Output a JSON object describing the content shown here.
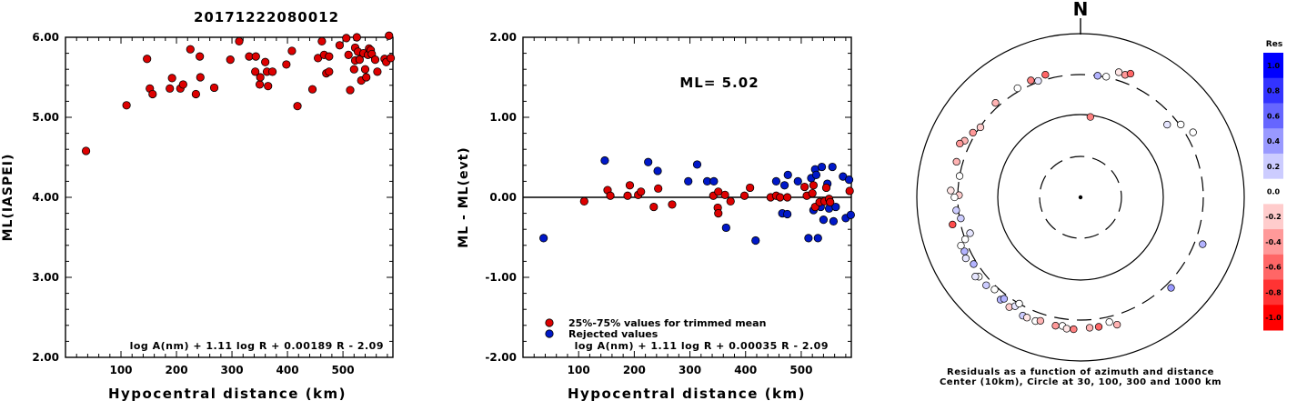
{
  "title": "20171222080012",
  "colors": {
    "accepted": "#dd0000",
    "rejected": "#0018c8",
    "axis": "#000000"
  },
  "chart_data": [
    {
      "type": "scatter",
      "ylabel": "ML(IASPEI)",
      "xlabel": "Hypocentral distance (km)",
      "xlim": [
        0,
        590
      ],
      "ylim": [
        2.0,
        6.0
      ],
      "xticks": [
        100,
        200,
        300,
        400,
        500
      ],
      "yticks": [
        2.0,
        3.0,
        4.0,
        5.0,
        6.0
      ],
      "ytick_labels": [
        "2.00",
        "3.00",
        "4.00",
        "5.00",
        "6.00"
      ],
      "formula": "log A(nm) + 1.11 log R + 0.00189 R - 2.09",
      "points": [
        [
          37,
          4.58
        ],
        [
          110,
          5.15
        ],
        [
          147,
          5.73
        ],
        [
          152,
          5.36
        ],
        [
          157,
          5.29
        ],
        [
          188,
          5.36
        ],
        [
          192,
          5.49
        ],
        [
          207,
          5.36
        ],
        [
          212,
          5.41
        ],
        [
          225,
          5.85
        ],
        [
          235,
          5.29
        ],
        [
          242,
          5.76
        ],
        [
          243,
          5.5
        ],
        [
          268,
          5.37
        ],
        [
          297,
          5.72
        ],
        [
          313,
          5.95
        ],
        [
          331,
          5.76
        ],
        [
          343,
          5.76
        ],
        [
          342,
          5.57
        ],
        [
          350,
          5.41
        ],
        [
          351,
          5.5
        ],
        [
          360,
          5.69
        ],
        [
          363,
          5.57
        ],
        [
          365,
          5.39
        ],
        [
          373,
          5.57
        ],
        [
          398,
          5.66
        ],
        [
          408,
          5.83
        ],
        [
          418,
          5.14
        ],
        [
          445,
          5.35
        ],
        [
          455,
          5.74
        ],
        [
          462,
          5.95
        ],
        [
          466,
          5.78
        ],
        [
          470,
          5.55
        ],
        [
          475,
          5.57
        ],
        [
          475,
          5.76
        ],
        [
          494,
          5.9
        ],
        [
          506,
          5.99
        ],
        [
          510,
          5.78
        ],
        [
          513,
          5.34
        ],
        [
          520,
          5.6
        ],
        [
          522,
          5.71
        ],
        [
          522,
          5.87
        ],
        [
          525,
          6.0
        ],
        [
          527,
          5.82
        ],
        [
          530,
          5.72
        ],
        [
          533,
          5.46
        ],
        [
          537,
          5.8
        ],
        [
          540,
          5.6
        ],
        [
          542,
          5.5
        ],
        [
          545,
          5.78
        ],
        [
          547,
          5.86
        ],
        [
          550,
          5.84
        ],
        [
          552,
          5.79
        ],
        [
          558,
          5.72
        ],
        [
          562,
          5.57
        ],
        [
          575,
          5.73
        ],
        [
          578,
          5.69
        ],
        [
          583,
          6.02
        ],
        [
          586,
          5.74
        ]
      ]
    },
    {
      "type": "scatter",
      "ylabel": "ML - ML(evt)",
      "xlabel": "Hypocentral distance (km)",
      "xlim": [
        0,
        590
      ],
      "ylim": [
        -2.0,
        2.0
      ],
      "xticks": [
        100,
        200,
        300,
        400,
        500
      ],
      "yticks": [
        -2.0,
        -1.0,
        0.0,
        1.0,
        2.0
      ],
      "ytick_labels": [
        "-2.00",
        "-1.00",
        "0.00",
        "1.00",
        "2.00"
      ],
      "annotation": "ML= 5.02",
      "legend": [
        "25%-75% values for trimmed mean",
        "Rejected values"
      ],
      "formula": "log A(nm) + 1.11 log R + 0.00035 R - 2.09",
      "series": [
        {
          "name": "25%-75% values for trimmed mean",
          "points": [
            [
              110,
              -0.05
            ],
            [
              152,
              0.09
            ],
            [
              157,
              0.02
            ],
            [
              188,
              0.02
            ],
            [
              192,
              0.15
            ],
            [
              207,
              0.03
            ],
            [
              212,
              0.07
            ],
            [
              235,
              -0.12
            ],
            [
              243,
              0.11
            ],
            [
              268,
              -0.09
            ],
            [
              342,
              0.02
            ],
            [
              350,
              -0.13
            ],
            [
              351,
              -0.2
            ],
            [
              351,
              0.07
            ],
            [
              363,
              0.03
            ],
            [
              373,
              -0.05
            ],
            [
              398,
              0.02
            ],
            [
              408,
              0.12
            ],
            [
              445,
              0.0
            ],
            [
              455,
              0.02
            ],
            [
              462,
              0.0
            ],
            [
              475,
              0.0
            ],
            [
              506,
              0.13
            ],
            [
              510,
              0.02
            ],
            [
              520,
              0.05
            ],
            [
              522,
              0.15
            ],
            [
              525,
              -0.12
            ],
            [
              533,
              -0.06
            ],
            [
              542,
              -0.05
            ],
            [
              545,
              0.12
            ],
            [
              550,
              -0.02
            ],
            [
              552,
              -0.06
            ],
            [
              587,
              0.08
            ]
          ]
        },
        {
          "name": "Rejected values",
          "points": [
            [
              37,
              -0.51
            ],
            [
              147,
              0.46
            ],
            [
              225,
              0.44
            ],
            [
              242,
              0.33
            ],
            [
              297,
              0.2
            ],
            [
              313,
              0.41
            ],
            [
              331,
              0.2
            ],
            [
              343,
              0.2
            ],
            [
              365,
              -0.38
            ],
            [
              418,
              -0.54
            ],
            [
              455,
              0.2
            ],
            [
              466,
              -0.2
            ],
            [
              470,
              0.15
            ],
            [
              475,
              -0.21
            ],
            [
              476,
              0.28
            ],
            [
              494,
              0.2
            ],
            [
              513,
              -0.51
            ],
            [
              518,
              0.24
            ],
            [
              522,
              -0.16
            ],
            [
              525,
              0.35
            ],
            [
              527,
              0.28
            ],
            [
              530,
              -0.51
            ],
            [
              535,
              -0.12
            ],
            [
              537,
              0.38
            ],
            [
              540,
              -0.28
            ],
            [
              547,
              0.17
            ],
            [
              550,
              -0.14
            ],
            [
              556,
              0.38
            ],
            [
              558,
              -0.3
            ],
            [
              562,
              -0.12
            ],
            [
              575,
              0.26
            ],
            [
              580,
              -0.26
            ],
            [
              586,
              0.22
            ],
            [
              589,
              -0.22
            ]
          ]
        }
      ]
    },
    {
      "type": "scatter",
      "subtype": "polar",
      "north_label": "N",
      "caption": [
        "Residuals as a function of azimuth and distance",
        "Center (10km), Circle at 30, 100, 300 and 1000 km"
      ],
      "rings_km": [
        30,
        100,
        300,
        1000
      ],
      "colorbar": {
        "title": "Res",
        "range": [
          -1.0,
          1.0
        ],
        "tick_labels": [
          "1.0",
          "0.8",
          "0.6",
          "0.4",
          "0.2",
          "0.0",
          "-0.2",
          "-0.4",
          "-0.6",
          "-0.8",
          "-1.0"
        ]
      },
      "points": [
        [
          7,
          95,
          -0.5
        ],
        [
          8,
          300,
          0.3
        ],
        [
          12,
          305,
          0.0
        ],
        [
          17,
          380,
          -0.1
        ],
        [
          20,
          375,
          -0.4
        ],
        [
          22,
          410,
          -0.6
        ],
        [
          340,
          310,
          0.1
        ],
        [
          337,
          340,
          -0.5
        ],
        [
          344,
          345,
          -0.6
        ],
        [
          330,
          330,
          0.0
        ],
        [
          318,
          340,
          -0.3
        ],
        [
          305,
          295,
          -0.2
        ],
        [
          301,
          325,
          -0.4
        ],
        [
          296,
          360,
          -0.3
        ],
        [
          294,
          395,
          -0.4
        ],
        [
          286,
          360,
          -0.3
        ],
        [
          280,
          300,
          0.0
        ],
        [
          271,
          290,
          -0.2
        ],
        [
          270,
          330,
          0.0
        ],
        [
          273,
          370,
          -0.1
        ],
        [
          264,
          320,
          0.2
        ],
        [
          260,
          290,
          0.2
        ],
        [
          258,
          380,
          -0.7
        ],
        [
          250,
          300,
          0.0
        ],
        [
          252,
          250,
          0.1
        ],
        [
          248,
          360,
          0.0
        ],
        [
          245,
          350,
          0.3
        ],
        [
          242,
          370,
          0.1
        ],
        [
          238,
          330,
          0.3
        ],
        [
          232,
          360,
          0.0
        ],
        [
          233,
          390,
          0.1
        ],
        [
          227,
          360,
          0.2
        ],
        [
          223,
          330,
          0.0
        ],
        [
          218,
          370,
          0.3
        ],
        [
          217,
          340,
          0.3
        ],
        [
          213,
          380,
          -0.2
        ],
        [
          211,
          340,
          0.1
        ],
        [
          210,
          300,
          0.0
        ],
        [
          206,
          390,
          0.2
        ],
        [
          204,
          390,
          -0.1
        ],
        [
          200,
          390,
          0.0
        ],
        [
          198,
          370,
          -0.3
        ],
        [
          191,
          380,
          -0.4
        ],
        [
          188,
          370,
          0.0
        ],
        [
          186,
          395,
          -0.1
        ],
        [
          183,
          395,
          -0.5
        ],
        [
          176,
          380,
          -0.3
        ],
        [
          172,
          380,
          -0.6
        ],
        [
          167,
          350,
          0.0
        ],
        [
          164,
          400,
          -0.3
        ],
        [
          135,
          350,
          0.4
        ],
        [
          111,
          380,
          0.3
        ],
        [
          60,
          370,
          0.0
        ],
        [
          54,
          310,
          0.0
        ],
        [
          50,
          230,
          0.1
        ]
      ]
    }
  ]
}
